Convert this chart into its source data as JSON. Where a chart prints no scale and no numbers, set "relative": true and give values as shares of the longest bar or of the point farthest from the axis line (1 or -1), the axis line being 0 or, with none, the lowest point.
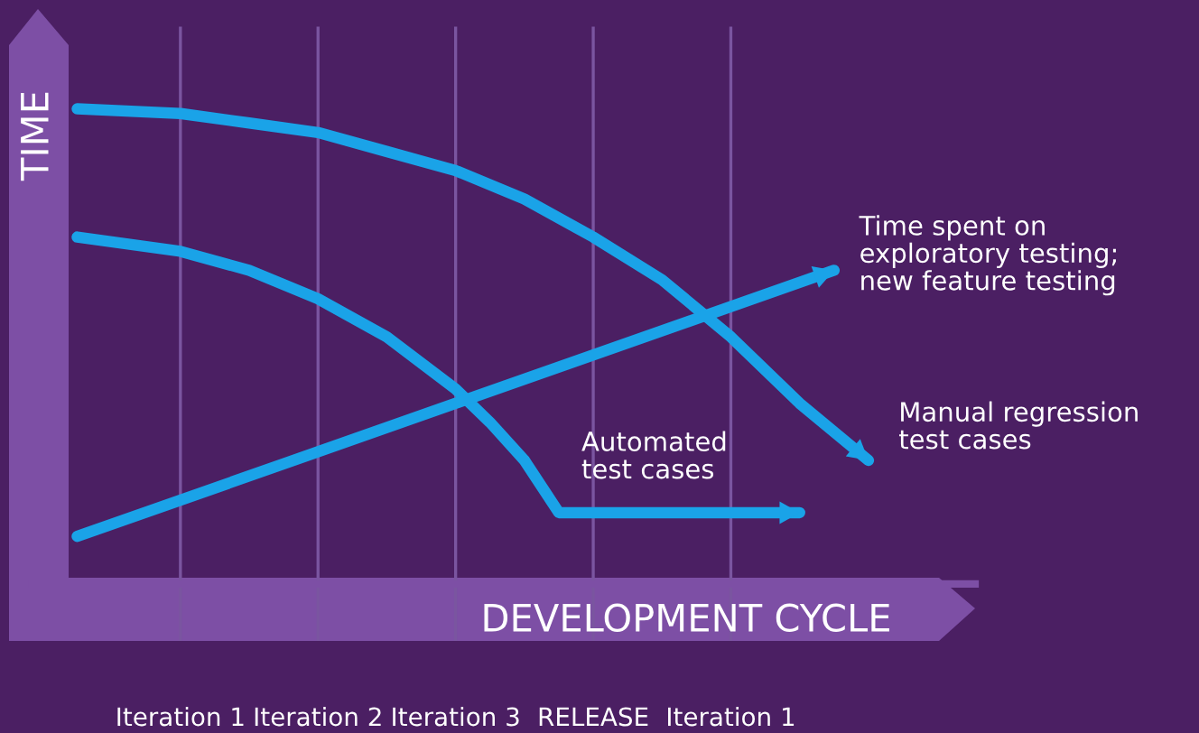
{
  "chart_data": {
    "type": "line",
    "relative": true,
    "ylabel": "TIME",
    "xlabel": "DEVELOPMENT CYCLE",
    "categories": [
      null,
      null,
      null,
      "Iteration 1",
      null,
      null,
      null,
      "Iteration 2",
      null,
      null,
      null,
      "Iteration 3",
      null,
      null,
      null,
      "RELEASE",
      null,
      null,
      null,
      "Iteration 1",
      null,
      null,
      null,
      null
    ],
    "grid": "x",
    "marker": "none",
    "line_style": "solid",
    "series": [
      {
        "name": "Manual regression\ntest cases",
        "color": "#1aa3e8",
        "values": [
          1.0,
          null,
          null,
          0.99,
          null,
          0.97,
          null,
          0.95,
          null,
          0.91,
          null,
          0.87,
          null,
          0.81,
          null,
          0.73,
          null,
          0.64,
          null,
          0.52,
          null,
          0.38,
          null,
          0.26
        ]
      },
      {
        "name": "Automated\ntest cases",
        "color": "#1aa3e8",
        "values": [
          0.73,
          null,
          null,
          0.7,
          null,
          0.66,
          null,
          0.6,
          null,
          0.52,
          null,
          0.41,
          0.34,
          0.26,
          0.15,
          null,
          null,
          null,
          null,
          null,
          null,
          0.15,
          null,
          null
        ]
      },
      {
        "name": "Time spent on\nexploratory testing;\nnew feature testing",
        "color": "#1aa3e8",
        "values": [
          0.1,
          null,
          null,
          null,
          null,
          null,
          null,
          null,
          null,
          null,
          null,
          null,
          null,
          null,
          null,
          null,
          null,
          null,
          null,
          null,
          null,
          null,
          0.66,
          null
        ]
      }
    ]
  }
}
